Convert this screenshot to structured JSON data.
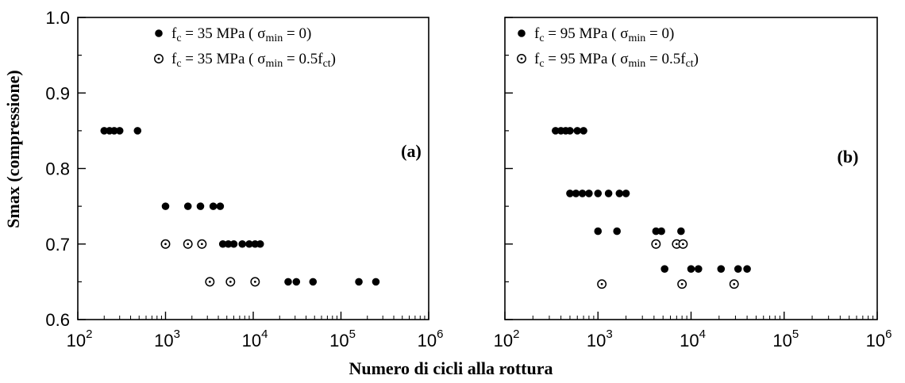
{
  "figure": {
    "ylabel": "Smax (compressione)",
    "xlabel": "Numero di cicli alla rottura"
  },
  "chart_data": [
    {
      "type": "scatter",
      "panel_label": "(a)",
      "x_scale": "log",
      "xlim": [
        100,
        1000000
      ],
      "ylim": [
        0.6,
        1.0
      ],
      "x_ticks": [
        {
          "base": "10",
          "exp": "2"
        },
        {
          "base": "10",
          "exp": "3"
        },
        {
          "base": "10",
          "exp": "4"
        },
        {
          "base": "10",
          "exp": "5"
        },
        {
          "base": "10",
          "exp": "6"
        }
      ],
      "y_ticks": [
        "0.6",
        "0.7",
        "0.8",
        "0.9",
        "1.0"
      ],
      "y_tick_values": [
        0.6,
        0.7,
        0.8,
        0.9,
        1.0
      ],
      "legend_position": "top-right",
      "series": [
        {
          "name": "fc = 35 MPa  ( σmin = 0)",
          "name_parts": {
            "f": "f",
            "sub1": "c",
            "mid": " = 35 MPa  ( σ",
            "sub2": "min",
            "end": " = 0)"
          },
          "marker": "filled",
          "points": [
            [
              200,
              0.85
            ],
            [
              230,
              0.85
            ],
            [
              260,
              0.85
            ],
            [
              300,
              0.85
            ],
            [
              480,
              0.85
            ],
            [
              1000,
              0.75
            ],
            [
              1800,
              0.75
            ],
            [
              2500,
              0.75
            ],
            [
              3500,
              0.75
            ],
            [
              4200,
              0.75
            ],
            [
              4500,
              0.7
            ],
            [
              5200,
              0.7
            ],
            [
              6000,
              0.7
            ],
            [
              7500,
              0.7
            ],
            [
              9000,
              0.7
            ],
            [
              10500,
              0.7
            ],
            [
              12000,
              0.7
            ],
            [
              25000,
              0.65
            ],
            [
              31000,
              0.65
            ],
            [
              48000,
              0.65
            ],
            [
              160000,
              0.65
            ],
            [
              250000,
              0.65
            ]
          ]
        },
        {
          "name": "fc = 35 MPa  ( σmin = 0.5fct)",
          "name_parts": {
            "f": "f",
            "sub1": "c",
            "mid": " = 35 MPa  ( σ",
            "sub2": "min",
            "end": " = 0.5f",
            "sub3": "ct",
            "tail": ")"
          },
          "marker": "open",
          "points": [
            [
              1000,
              0.7
            ],
            [
              1800,
              0.7
            ],
            [
              2600,
              0.7
            ],
            [
              3200,
              0.65
            ],
            [
              5500,
              0.65
            ],
            [
              10500,
              0.65
            ]
          ]
        }
      ]
    },
    {
      "type": "scatter",
      "panel_label": "(b)",
      "x_scale": "log",
      "xlim": [
        100,
        1000000
      ],
      "ylim": [
        0.6,
        1.0
      ],
      "x_ticks": [
        {
          "base": "10",
          "exp": "2"
        },
        {
          "base": "10",
          "exp": "3"
        },
        {
          "base": "10",
          "exp": "4"
        },
        {
          "base": "10",
          "exp": "5"
        },
        {
          "base": "10",
          "exp": "6"
        }
      ],
      "legend_position": "top-right",
      "series": [
        {
          "name": "fc = 95 MPa  ( σmin = 0)",
          "name_parts": {
            "f": "f",
            "sub1": "c",
            "mid": " = 95 MPa  ( σ",
            "sub2": "min",
            "end": " = 0)"
          },
          "marker": "filled",
          "points": [
            [
              350,
              0.85
            ],
            [
              400,
              0.85
            ],
            [
              450,
              0.85
            ],
            [
              500,
              0.85
            ],
            [
              600,
              0.85
            ],
            [
              700,
              0.85
            ],
            [
              500,
              0.767
            ],
            [
              580,
              0.767
            ],
            [
              680,
              0.767
            ],
            [
              800,
              0.767
            ],
            [
              1000,
              0.767
            ],
            [
              1300,
              0.767
            ],
            [
              1700,
              0.767
            ],
            [
              2000,
              0.767
            ],
            [
              1000,
              0.717
            ],
            [
              1600,
              0.717
            ],
            [
              4200,
              0.717
            ],
            [
              4800,
              0.717
            ],
            [
              7800,
              0.717
            ],
            [
              5200,
              0.667
            ],
            [
              10000,
              0.667
            ],
            [
              12000,
              0.667
            ],
            [
              21000,
              0.667
            ],
            [
              32000,
              0.667
            ],
            [
              40000,
              0.667
            ]
          ]
        },
        {
          "name": "fc = 95 MPa  ( σmin = 0.5fct)",
          "name_parts": {
            "f": "f",
            "sub1": "c",
            "mid": " = 95 MPa  ( σ",
            "sub2": "min",
            "end": " = 0.5f",
            "sub3": "ct",
            "tail": ")"
          },
          "marker": "open",
          "points": [
            [
              4200,
              0.7
            ],
            [
              7000,
              0.7
            ],
            [
              8200,
              0.7
            ],
            [
              1100,
              0.647
            ],
            [
              8000,
              0.647
            ],
            [
              29000,
              0.647
            ]
          ]
        }
      ]
    }
  ]
}
